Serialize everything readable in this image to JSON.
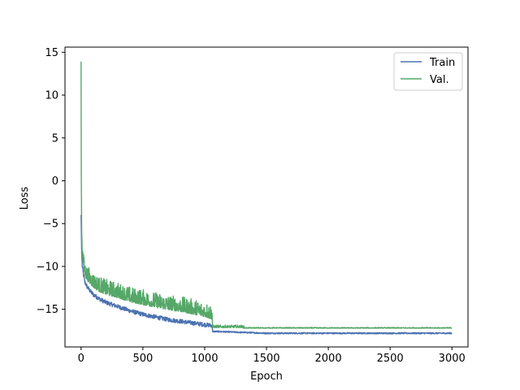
{
  "chart_data": {
    "type": "line",
    "xlabel": "Epoch",
    "ylabel": "Loss",
    "xlim": [
      -130,
      3130
    ],
    "ylim": [
      -19.4,
      15.6
    ],
    "xticks": [
      0,
      500,
      1000,
      1500,
      2000,
      2500,
      3000
    ],
    "yticks": [
      -15,
      -10,
      -5,
      0,
      5,
      10,
      15
    ],
    "grid": false,
    "legend_position": "top-right",
    "series": [
      {
        "name": "Train",
        "color": "#4c72b0",
        "x": [
          0,
          5,
          10,
          20,
          30,
          50,
          75,
          100,
          150,
          200,
          300,
          400,
          500,
          600,
          700,
          800,
          900,
          1000,
          1060,
          1065,
          1070,
          1100,
          1300,
          1500,
          2000,
          2500,
          3000
        ],
        "y": [
          -4.0,
          -8.5,
          -10.0,
          -11.0,
          -11.8,
          -12.4,
          -12.9,
          -13.3,
          -13.8,
          -14.2,
          -14.7,
          -15.2,
          -15.6,
          -15.9,
          -16.2,
          -16.4,
          -16.6,
          -16.8,
          -16.9,
          -17.6,
          -17.6,
          -17.6,
          -17.7,
          -17.8,
          -17.8,
          -17.8,
          -17.8
        ]
      },
      {
        "name": "Val.",
        "color": "#55a868",
        "x": [
          0,
          2,
          5,
          10,
          20,
          30,
          50,
          75,
          100,
          150,
          200,
          300,
          400,
          500,
          600,
          700,
          800,
          900,
          1000,
          1060,
          1065,
          1070,
          1100,
          1200,
          1300,
          1320,
          1500,
          2000,
          2500,
          3000
        ],
        "y": [
          13.9,
          0.0,
          -6.0,
          -8.5,
          -10.0,
          -10.8,
          -11.4,
          -11.8,
          -12.2,
          -12.7,
          -13.0,
          -13.4,
          -13.9,
          -14.2,
          -14.5,
          -14.8,
          -15.0,
          -15.3,
          -15.6,
          -15.9,
          -17.1,
          -17.1,
          -17.1,
          -17.1,
          -17.1,
          -17.2,
          -17.2,
          -17.2,
          -17.2,
          -17.2
        ]
      }
    ]
  }
}
